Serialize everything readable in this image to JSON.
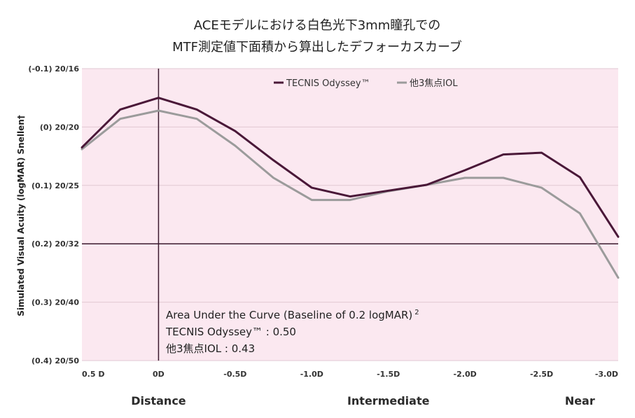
{
  "chart_data": {
    "type": "line",
    "title_lines": [
      "ACEモデルにおける白色光下3mm瞳孔での",
      "MTF測定値下面積から算出したデフォーカスカーブ"
    ],
    "ylabel": "Simulated Visual Acuity (logMAR) Snellen†",
    "xlabel": "",
    "x": [
      0.5,
      0.25,
      0,
      -0.25,
      -0.5,
      -0.75,
      -1.0,
      -1.25,
      -1.5,
      -1.75,
      -2.0,
      -2.25,
      -2.5,
      -2.75,
      -3.0
    ],
    "xlim": [
      0.5,
      -3.0
    ],
    "x_ticks": [
      {
        "value": 0.5,
        "label": "0.5 D"
      },
      {
        "value": 0,
        "label": "0D"
      },
      {
        "value": -0.5,
        "label": "-0.5D"
      },
      {
        "value": -1.0,
        "label": "-1.0D"
      },
      {
        "value": -1.5,
        "label": "-1.5D"
      },
      {
        "value": -2.0,
        "label": "-2.0D"
      },
      {
        "value": -2.5,
        "label": "-2.5D"
      },
      {
        "value": -3.0,
        "label": "-3.0D"
      }
    ],
    "ylim": [
      -0.1,
      0.4
    ],
    "y_ticks": [
      {
        "value": -0.1,
        "label": "(-0.1) 20/16"
      },
      {
        "value": 0.0,
        "label": "(0) 20/20"
      },
      {
        "value": 0.1,
        "label": "(0.1) 20/25"
      },
      {
        "value": 0.2,
        "label": "(0.2) 20/32"
      },
      {
        "value": 0.3,
        "label": "(0.3) 20/40"
      },
      {
        "value": 0.4,
        "label": "(0.4) 20/50"
      }
    ],
    "grid": true,
    "baseline_logmar": 0.2,
    "region_labels": [
      {
        "value": 0,
        "label": "Distance"
      },
      {
        "value": -1.5,
        "label": "Intermediate"
      },
      {
        "value": -2.75,
        "label": "Near"
      }
    ],
    "legend_position": "top-center",
    "series": [
      {
        "name": "TECNIS Odyssey™",
        "color": "#4a1838",
        "values": [
          0.035,
          -0.03,
          -0.05,
          -0.03,
          0.007,
          0.057,
          0.104,
          0.119,
          0.109,
          0.099,
          0.074,
          0.047,
          0.044,
          0.086,
          0.188
        ]
      },
      {
        "name": "他3焦点IOL",
        "color": "#9b9b9b",
        "values": [
          0.038,
          -0.014,
          -0.028,
          -0.014,
          0.032,
          0.087,
          0.125,
          0.125,
          0.11,
          0.099,
          0.087,
          0.087,
          0.104,
          0.148,
          0.258
        ]
      }
    ],
    "annotation": {
      "heading": "Area Under the Curve (Baseline of 0.2 logMAR)",
      "heading_sup": "2",
      "lines": [
        "TECNIS Odyssey™ : 0.50",
        "他3焦点IOL : 0.43"
      ]
    }
  },
  "colors": {
    "plot_background": "#fbe8f0",
    "gridline": "#e2c9d3",
    "axis_line": "#3a1a2e"
  }
}
